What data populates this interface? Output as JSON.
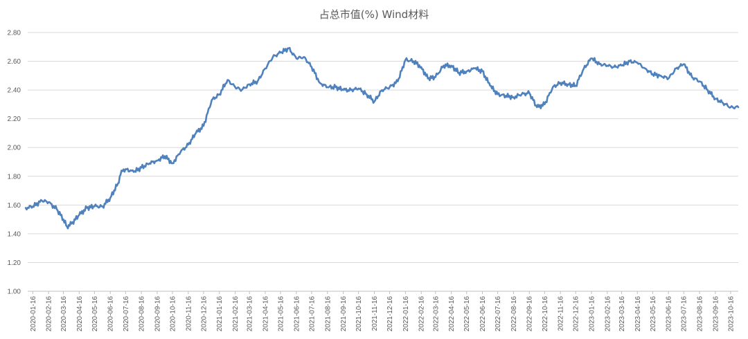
{
  "chart_data": {
    "type": "line",
    "title": "占总市值(%) Wind材料",
    "xlabel": "",
    "ylabel": "",
    "ylim": [
      1.0,
      2.8
    ],
    "yticks": [
      "1.00",
      "1.20",
      "1.40",
      "1.60",
      "1.80",
      "2.00",
      "2.20",
      "2.40",
      "2.60",
      "2.80"
    ],
    "x_tick_labels": [
      "2020-01-16",
      "2020-02-16",
      "2020-03-16",
      "2020-04-16",
      "2020-05-16",
      "2020-06-16",
      "2020-07-16",
      "2020-08-16",
      "2020-09-16",
      "2020-10-16",
      "2020-11-16",
      "2020-12-16",
      "2021-01-16",
      "2021-02-16",
      "2021-03-16",
      "2021-04-16",
      "2021-05-16",
      "2021-06-16",
      "2021-07-16",
      "2021-08-16",
      "2021-09-16",
      "2021-10-16",
      "2021-11-16",
      "2021-12-16",
      "2022-01-16",
      "2022-02-16",
      "2022-03-16",
      "2022-04-16",
      "2022-05-16",
      "2022-06-16",
      "2022-07-16",
      "2022-08-16",
      "2022-09-16",
      "2022-10-16",
      "2022-11-16",
      "2022-12-16",
      "2023-01-16",
      "2023-02-16",
      "2023-03-16",
      "2023-04-16",
      "2023-05-16",
      "2023-06-16",
      "2023-07-16",
      "2023-08-16",
      "2023-09-16",
      "2023-10-16"
    ],
    "grid": true,
    "legend": "none",
    "color": "#4f81bd",
    "series": [
      {
        "x": [
          "2020-01-02",
          "2020-01-16",
          "2020-02-03",
          "2020-02-16",
          "2020-03-03",
          "2020-03-16",
          "2020-03-23",
          "2020-04-01",
          "2020-04-16",
          "2020-05-01",
          "2020-05-16",
          "2020-06-01",
          "2020-06-16",
          "2020-07-01",
          "2020-07-08",
          "2020-07-16",
          "2020-08-01",
          "2020-08-16",
          "2020-09-01",
          "2020-09-16",
          "2020-10-01",
          "2020-10-16",
          "2020-11-01",
          "2020-11-16",
          "2020-12-01",
          "2020-12-16",
          "2021-01-01",
          "2021-01-16",
          "2021-02-01",
          "2021-02-16",
          "2021-03-01",
          "2021-03-16",
          "2021-04-01",
          "2021-04-16",
          "2021-05-01",
          "2021-05-16",
          "2021-06-01",
          "2021-06-16",
          "2021-07-01",
          "2021-07-16",
          "2021-08-01",
          "2021-08-16",
          "2021-09-01",
          "2021-09-16",
          "2021-10-01",
          "2021-10-16",
          "2021-11-01",
          "2021-11-16",
          "2021-12-01",
          "2021-12-16",
          "2022-01-01",
          "2022-01-16",
          "2022-02-01",
          "2022-02-16",
          "2022-03-01",
          "2022-03-16",
          "2022-04-01",
          "2022-04-16",
          "2022-05-01",
          "2022-05-16",
          "2022-06-01",
          "2022-06-16",
          "2022-07-01",
          "2022-07-16",
          "2022-08-01",
          "2022-08-16",
          "2022-09-01",
          "2022-09-16",
          "2022-10-01",
          "2022-10-16",
          "2022-11-01",
          "2022-11-16",
          "2022-12-01",
          "2022-12-16",
          "2023-01-01",
          "2023-01-16",
          "2023-02-01",
          "2023-02-16",
          "2023-03-01",
          "2023-03-16",
          "2023-04-01",
          "2023-04-16",
          "2023-05-01",
          "2023-05-16",
          "2023-06-01",
          "2023-06-16",
          "2023-07-01",
          "2023-07-16",
          "2023-08-01",
          "2023-08-16",
          "2023-09-01",
          "2023-09-16",
          "2023-10-01",
          "2023-10-16",
          "2023-10-31"
        ],
        "values": [
          1.58,
          1.59,
          1.63,
          1.62,
          1.57,
          1.5,
          1.45,
          1.47,
          1.53,
          1.58,
          1.59,
          1.59,
          1.65,
          1.75,
          1.84,
          1.85,
          1.83,
          1.86,
          1.89,
          1.91,
          1.94,
          1.89,
          1.97,
          2.02,
          2.1,
          2.15,
          2.33,
          2.37,
          2.47,
          2.42,
          2.4,
          2.44,
          2.46,
          2.55,
          2.63,
          2.66,
          2.69,
          2.62,
          2.63,
          2.56,
          2.45,
          2.42,
          2.42,
          2.4,
          2.4,
          2.41,
          2.37,
          2.32,
          2.4,
          2.42,
          2.46,
          2.61,
          2.6,
          2.56,
          2.48,
          2.49,
          2.57,
          2.57,
          2.52,
          2.53,
          2.55,
          2.53,
          2.43,
          2.37,
          2.36,
          2.35,
          2.37,
          2.38,
          2.28,
          2.3,
          2.42,
          2.45,
          2.44,
          2.43,
          2.55,
          2.62,
          2.58,
          2.57,
          2.56,
          2.57,
          2.6,
          2.59,
          2.55,
          2.51,
          2.5,
          2.48,
          2.55,
          2.58,
          2.49,
          2.46,
          2.4,
          2.34,
          2.31,
          2.28,
          2.28
        ]
      }
    ]
  }
}
